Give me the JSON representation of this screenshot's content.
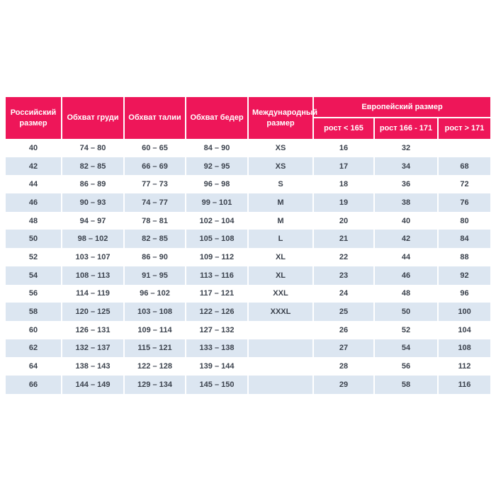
{
  "colors": {
    "header_bg": "#ee1659",
    "row_alt_bg": "#dce6f1",
    "cell_text": "#3b424d"
  },
  "table": {
    "header": {
      "russian_size": "Российский размер",
      "chest": "Обхват груди",
      "waist": "Обхват талии",
      "hips": "Обхват бедер",
      "international_size": "Международный размер",
      "european_size": "Европейский размер",
      "height_lt_165": "рост < 165",
      "height_166_171": "рост 166 - 171",
      "height_gt_171": "рост > 171"
    },
    "rows": [
      [
        "40",
        "74 – 80",
        "60 – 65",
        "84 – 90",
        "XS",
        "16",
        "32",
        ""
      ],
      [
        "42",
        "82 – 85",
        "66 – 69",
        "92 – 95",
        "XS",
        "17",
        "34",
        "68"
      ],
      [
        "44",
        "86 – 89",
        "77 – 73",
        "96 – 98",
        "S",
        "18",
        "36",
        "72"
      ],
      [
        "46",
        "90 – 93",
        "74 – 77",
        "99 – 101",
        "M",
        "19",
        "38",
        "76"
      ],
      [
        "48",
        "94 – 97",
        "78 – 81",
        "102 – 104",
        "M",
        "20",
        "40",
        "80"
      ],
      [
        "50",
        "98 – 102",
        "82 – 85",
        "105 – 108",
        "L",
        "21",
        "42",
        "84"
      ],
      [
        "52",
        "103 – 107",
        "86 – 90",
        "109 – 112",
        "XL",
        "22",
        "44",
        "88"
      ],
      [
        "54",
        "108 – 113",
        "91 – 95",
        "113 – 116",
        "XL",
        "23",
        "46",
        "92"
      ],
      [
        "56",
        "114 – 119",
        "96 – 102",
        "117 – 121",
        "XXL",
        "24",
        "48",
        "96"
      ],
      [
        "58",
        "120 – 125",
        "103 – 108",
        "122 – 126",
        "XXXL",
        "25",
        "50",
        "100"
      ],
      [
        "60",
        "126 – 131",
        "109 – 114",
        "127 – 132",
        "",
        "26",
        "52",
        "104"
      ],
      [
        "62",
        "132 – 137",
        "115 – 121",
        "133 – 138",
        "",
        "27",
        "54",
        "108"
      ],
      [
        "64",
        "138 – 143",
        "122 – 128",
        "139 – 144",
        "",
        "28",
        "56",
        "112"
      ],
      [
        "66",
        "144 – 149",
        "129 – 134",
        "145 – 150",
        "",
        "29",
        "58",
        "116"
      ]
    ]
  }
}
